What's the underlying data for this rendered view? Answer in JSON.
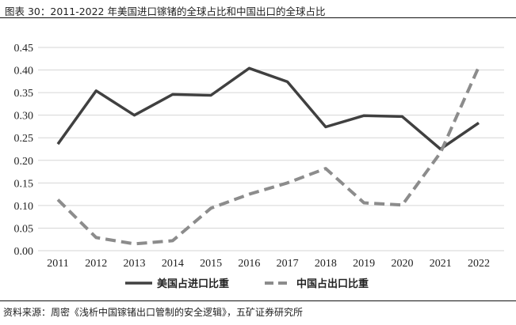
{
  "caption": "图表 30：2011-2022 年美国进口镓锗的全球占比和中国出口的全球占比",
  "source": "资料来源：周密《浅析中国镓锗出口管制的安全逻辑》，五矿证券研究所",
  "chart_data": {
    "type": "line",
    "title": "",
    "xlabel": "",
    "ylabel": "",
    "x": [
      "2011",
      "2012",
      "2013",
      "2014",
      "2015",
      "2016",
      "2017",
      "2018",
      "2019",
      "2020",
      "2021",
      "2022"
    ],
    "ylim": [
      0,
      0.45
    ],
    "yticks": [
      "0.00",
      "0.05",
      "0.10",
      "0.15",
      "0.20",
      "0.25",
      "0.30",
      "0.35",
      "0.40",
      "0.45"
    ],
    "grid": true,
    "legend_position": "bottom",
    "series": [
      {
        "name": "美国占进口比重",
        "style": "solid",
        "color": "#404040",
        "values": [
          0.236,
          0.354,
          0.3,
          0.346,
          0.344,
          0.404,
          0.374,
          0.274,
          0.299,
          0.297,
          0.225,
          0.283
        ]
      },
      {
        "name": "中国占出口比重",
        "style": "dashed",
        "color": "#8c8c8c",
        "values": [
          0.113,
          0.029,
          0.015,
          0.022,
          0.094,
          0.125,
          0.15,
          0.182,
          0.106,
          0.101,
          0.217,
          0.407
        ]
      }
    ]
  }
}
